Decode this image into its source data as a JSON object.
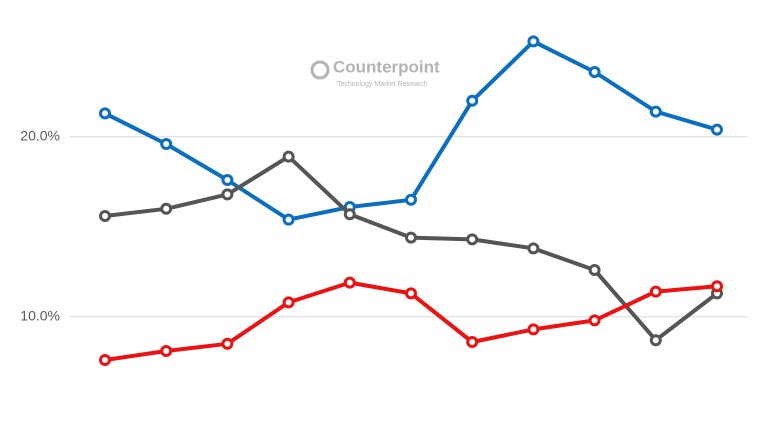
{
  "chart_data": {
    "type": "line",
    "annotations": [
      "Counterpoint",
      "Technology Market Research"
    ],
    "categories": [
      null,
      null,
      null,
      null,
      null,
      null,
      null,
      null,
      null,
      null,
      null
    ],
    "series": [
      {
        "color": "#0a6fc2",
        "values": [
          21.3,
          19.6,
          17.6,
          15.4,
          16.1,
          16.5,
          22.0,
          25.3,
          23.6,
          21.4,
          20.4
        ]
      },
      {
        "color": "#555555",
        "values": [
          15.6,
          16.0,
          16.8,
          18.9,
          15.7,
          14.4,
          14.3,
          13.8,
          12.6,
          8.7,
          11.3
        ]
      },
      {
        "color": "#ee1111",
        "values": [
          7.6,
          8.1,
          8.5,
          10.8,
          11.9,
          11.3,
          8.6,
          9.3,
          9.8,
          11.4,
          11.7
        ]
      }
    ],
    "ylim": [
      3.6,
      27.6
    ],
    "yticks": [
      {
        "value": 10,
        "label": "10.0%"
      },
      {
        "value": 20,
        "label": "20.0%"
      }
    ],
    "grid": true
  }
}
